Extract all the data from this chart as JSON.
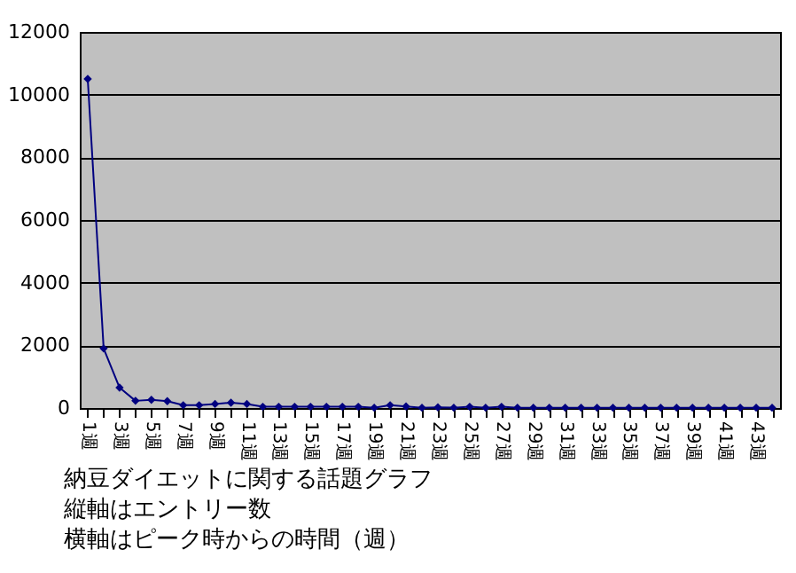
{
  "chart_data": {
    "type": "line",
    "categories": [
      "1週",
      null,
      "3週",
      null,
      "5週",
      null,
      "7週",
      null,
      "9週",
      null,
      "11週",
      null,
      "13週",
      null,
      "15週",
      null,
      "17週",
      null,
      "19週",
      null,
      "21週",
      null,
      "23週",
      null,
      "25週",
      null,
      "27週",
      null,
      "29週",
      null,
      "31週",
      null,
      "33週",
      null,
      "35週",
      null,
      "37週",
      null,
      "39週",
      null,
      "41週",
      null,
      "43週",
      null
    ],
    "series": [
      {
        "color": "#000080",
        "values": [
          10500,
          1900,
          650,
          230,
          260,
          220,
          90,
          90,
          130,
          170,
          130,
          40,
          40,
          40,
          40,
          40,
          40,
          40,
          10,
          90,
          50,
          10,
          20,
          10,
          40,
          10,
          40,
          10,
          10,
          10,
          10,
          10,
          10,
          10,
          10,
          10,
          10,
          10,
          10,
          10,
          10,
          10,
          10,
          10
        ]
      }
    ],
    "ylim": [
      0,
      12000
    ],
    "yticks": [
      0,
      2000,
      4000,
      6000,
      8000,
      10000,
      12000
    ],
    "grid": "y",
    "marker": "diamond",
    "annotations": [
      "納豆ダイエットに関する話題グラフ",
      "縦軸はエントリー数",
      "横軸はピーク時からの時間（週）"
    ]
  }
}
